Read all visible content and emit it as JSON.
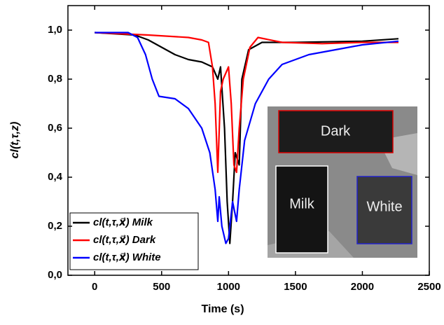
{
  "chart_data": {
    "type": "line",
    "x_label": "Time (s)",
    "y_label": "cl(t,τ,z)",
    "xlim": [
      -200,
      2500
    ],
    "xticks": [
      0,
      500,
      1000,
      1500,
      2000,
      2500
    ],
    "ylim": [
      0,
      1.1
    ],
    "yticks": [
      {
        "value": 0,
        "label": "0,0"
      },
      {
        "value": 0.2,
        "label": "0,2"
      },
      {
        "value": 0.4,
        "label": "0,4"
      },
      {
        "value": 0.6,
        "label": "0,6"
      },
      {
        "value": 0.8,
        "label": "0,8"
      },
      {
        "value": 1.0,
        "label": "1,0"
      }
    ],
    "legend": "lower left",
    "series": [
      {
        "name": "cl(t,τ,x⃗) Milk",
        "color": "#000000",
        "x": [
          0,
          300,
          400,
          500,
          600,
          700,
          800,
          880,
          920,
          940,
          970,
          990,
          1010,
          1030,
          1050,
          1080,
          1100,
          1150,
          1250,
          1500,
          2000,
          2270
        ],
        "values": [
          0.99,
          0.98,
          0.96,
          0.93,
          0.9,
          0.88,
          0.87,
          0.85,
          0.8,
          0.85,
          0.6,
          0.3,
          0.13,
          0.3,
          0.5,
          0.45,
          0.8,
          0.92,
          0.95,
          0.95,
          0.955,
          0.965
        ]
      },
      {
        "name": "cl(t,τ,x⃗) Dark",
        "color": "#ff0000",
        "x": [
          0,
          400,
          700,
          800,
          850,
          880,
          900,
          920,
          940,
          960,
          1000,
          1020,
          1040,
          1060,
          1080,
          1110,
          1160,
          1220,
          1400,
          1700,
          2000,
          2270
        ],
        "values": [
          0.99,
          0.98,
          0.97,
          0.96,
          0.95,
          0.85,
          0.7,
          0.42,
          0.75,
          0.8,
          0.85,
          0.7,
          0.45,
          0.42,
          0.6,
          0.8,
          0.93,
          0.97,
          0.95,
          0.945,
          0.95,
          0.95
        ]
      },
      {
        "name": "cl(t,τ,x⃗) White",
        "color": "#0000ff",
        "x": [
          0,
          250,
          320,
          380,
          430,
          480,
          600,
          700,
          800,
          860,
          900,
          920,
          930,
          950,
          980,
          1000,
          1030,
          1060,
          1080,
          1120,
          1200,
          1300,
          1400,
          1600,
          1800,
          2000,
          2270
        ],
        "values": [
          0.99,
          0.99,
          0.97,
          0.9,
          0.8,
          0.73,
          0.72,
          0.68,
          0.6,
          0.5,
          0.35,
          0.22,
          0.32,
          0.2,
          0.13,
          0.15,
          0.3,
          0.22,
          0.35,
          0.55,
          0.7,
          0.8,
          0.86,
          0.9,
          0.92,
          0.94,
          0.955
        ]
      }
    ],
    "inset": {
      "labels": [
        "Dark",
        "Milk",
        "White"
      ]
    }
  }
}
